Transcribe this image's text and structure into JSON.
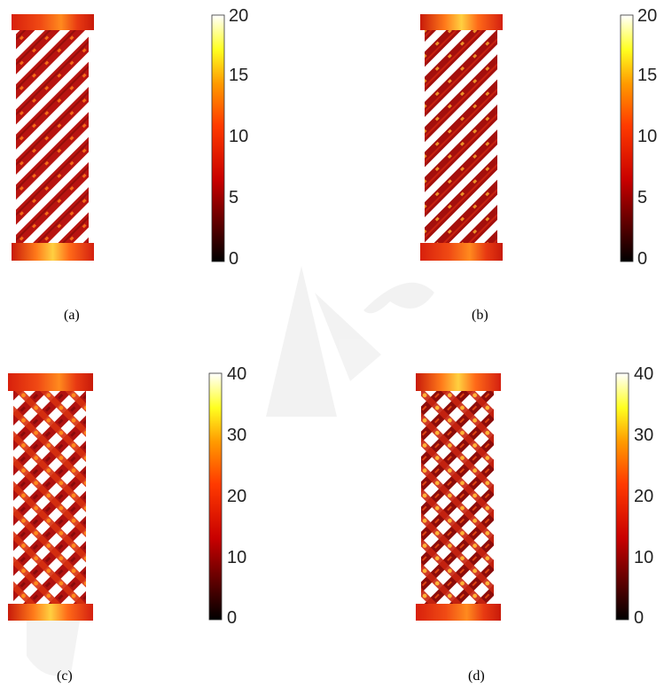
{
  "figure": {
    "panels": [
      {
        "id": "a",
        "caption": "(a)",
        "colorbar": {
          "ticks": [
            "0",
            "5",
            "10",
            "15",
            "20"
          ],
          "min": 0,
          "max": 20
        },
        "pattern": "single-direction diagonal strips",
        "colormap": "hot"
      },
      {
        "id": "b",
        "caption": "(b)",
        "colorbar": {
          "ticks": [
            "0",
            "5",
            "10",
            "15",
            "20"
          ],
          "min": 0,
          "max": 20
        },
        "pattern": "single-direction diagonal strips",
        "colormap": "hot"
      },
      {
        "id": "c",
        "caption": "(c)",
        "colorbar": {
          "ticks": [
            "0",
            "10",
            "20",
            "30",
            "40"
          ],
          "min": 0,
          "max": 40
        },
        "pattern": "cross-hatched diagonal lattice",
        "colormap": "hot"
      },
      {
        "id": "d",
        "caption": "(d)",
        "colorbar": {
          "ticks": [
            "0",
            "10",
            "20",
            "30",
            "40"
          ],
          "min": 0,
          "max": 40
        },
        "pattern": "cross-hatched diagonal lattice",
        "colormap": "hot"
      }
    ],
    "colors": {
      "hot_dark": "#000000",
      "hot_red": "#c00000",
      "hot_orange": "#ff6000",
      "hot_yellow": "#ffff40",
      "hot_white": "#ffffff",
      "strip_base": "#b01010",
      "plate": "#e23a14",
      "watermark": "#d8d8d8"
    }
  }
}
